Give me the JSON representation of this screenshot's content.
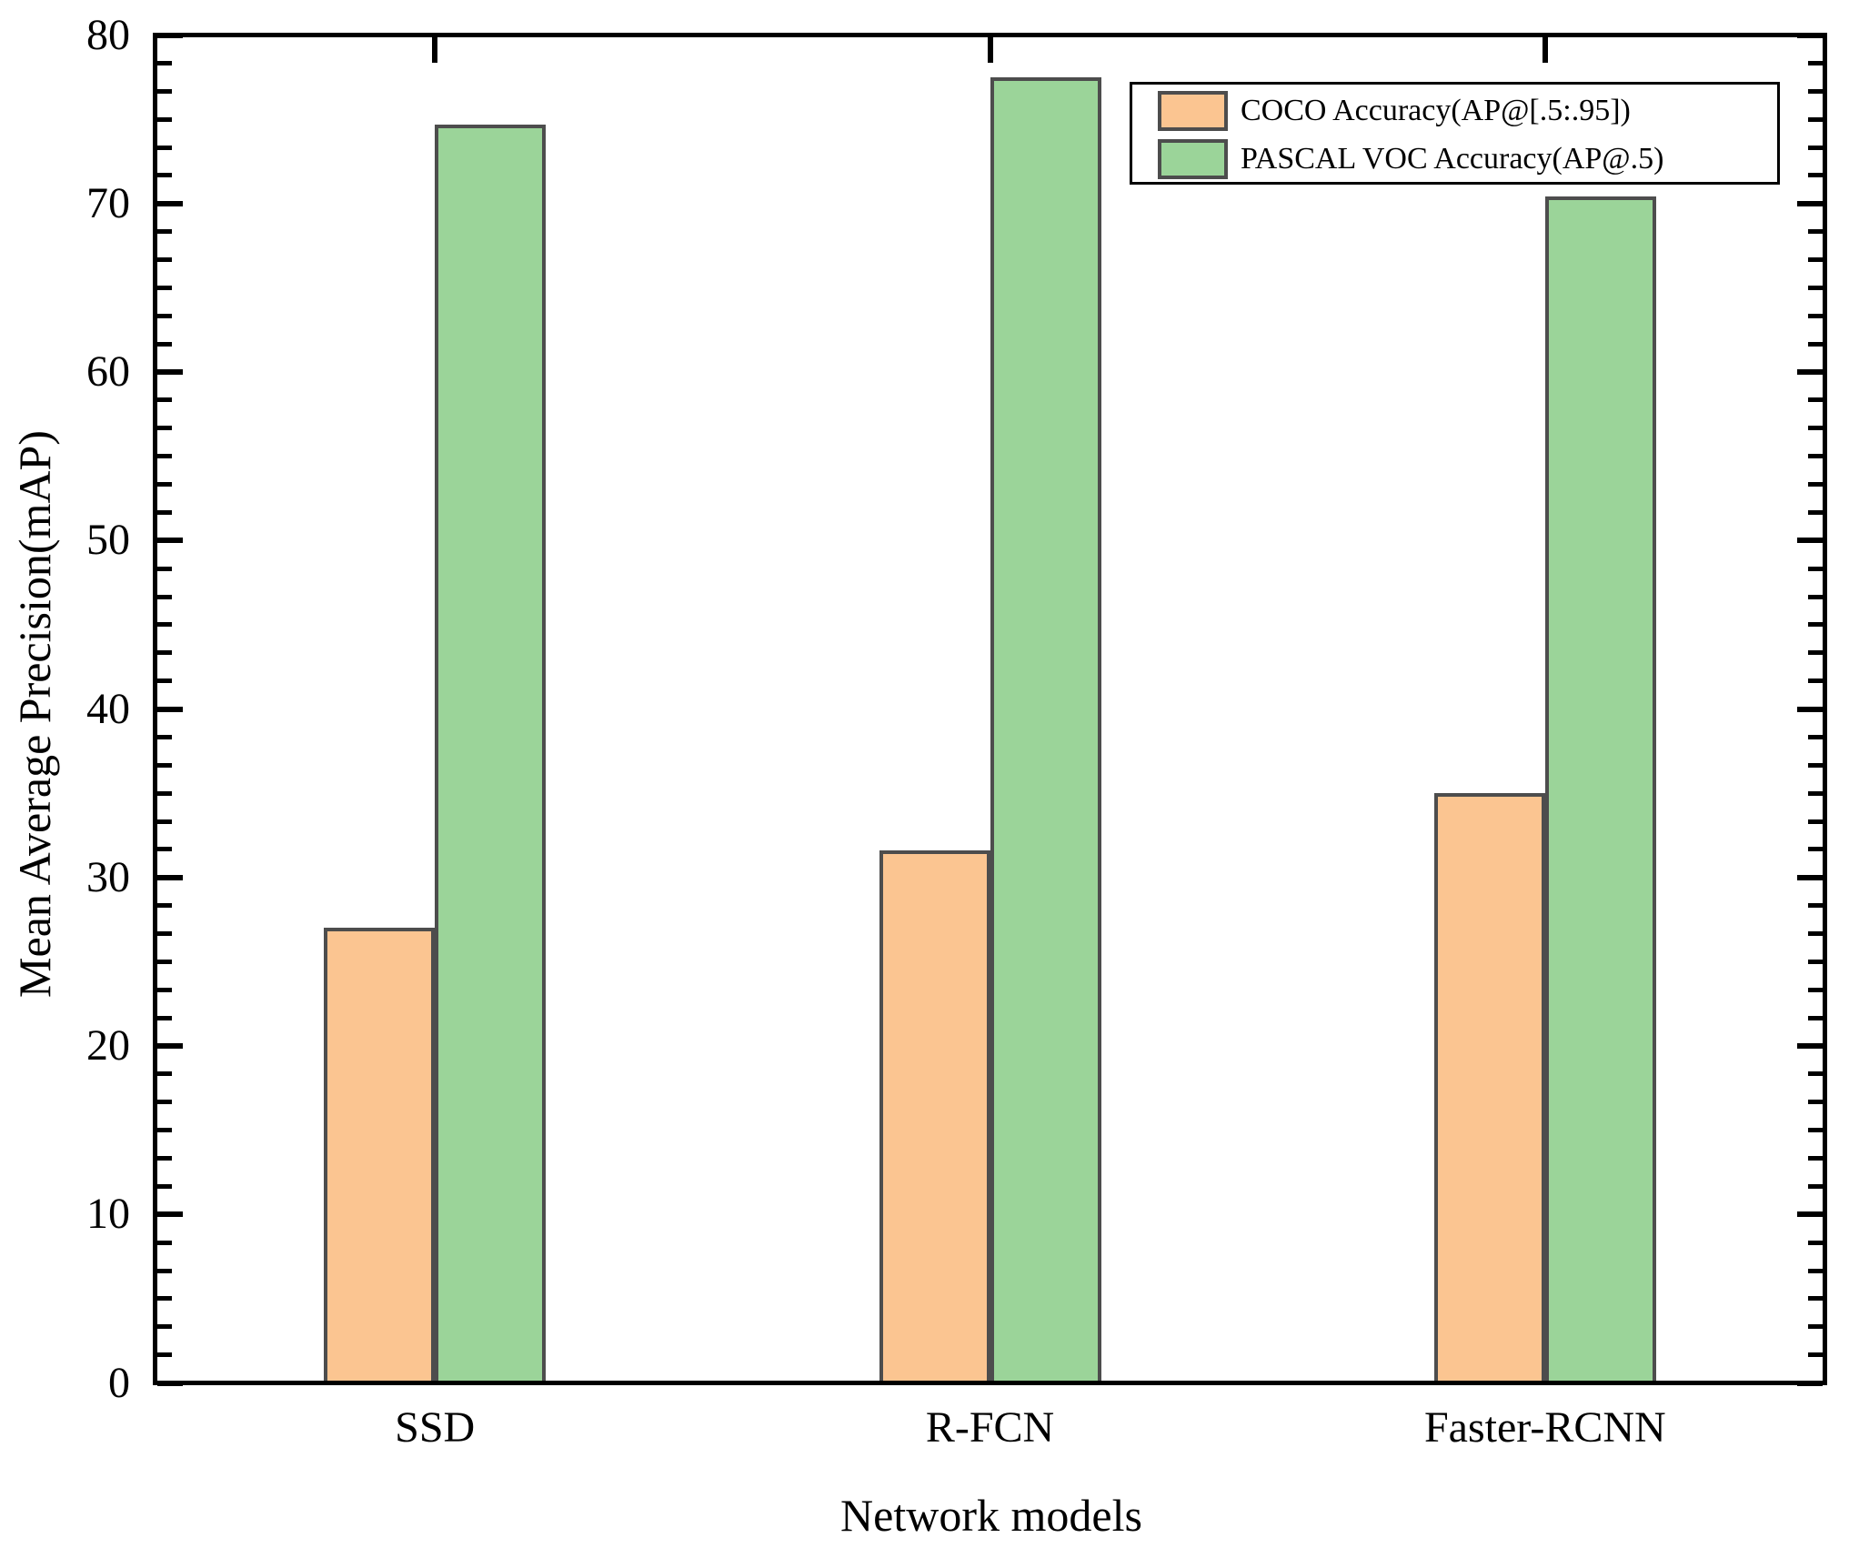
{
  "chart_data": {
    "type": "bar",
    "title": "",
    "xlabel": "Network models",
    "ylabel": "Mean Average Precision(mAP)",
    "categories": [
      "SSD",
      "R-FCN",
      "Faster-RCNN"
    ],
    "series": [
      {
        "name": "COCO Accuracy(AP@[.5:.95])",
        "color": "#FBC591",
        "edge_color": "#4D4D4D",
        "values": [
          26.9,
          31.5,
          34.9
        ]
      },
      {
        "name": "PASCAL VOC Accuracy(AP@.5)",
        "color": "#9BD499",
        "edge_color": "#4D4D4D",
        "values": [
          74.6,
          77.4,
          70.3
        ]
      }
    ],
    "ylim": [
      0,
      80
    ],
    "y_major_tick_step": 10,
    "y_minor_ticks_per_major": 5,
    "y_tick_labels": [
      "0",
      "10",
      "20",
      "30",
      "40",
      "50",
      "60",
      "70",
      "80"
    ],
    "legend_position": "top-right",
    "grid": false,
    "axis_color": "#000000",
    "background_color": "#FFFFFF"
  }
}
